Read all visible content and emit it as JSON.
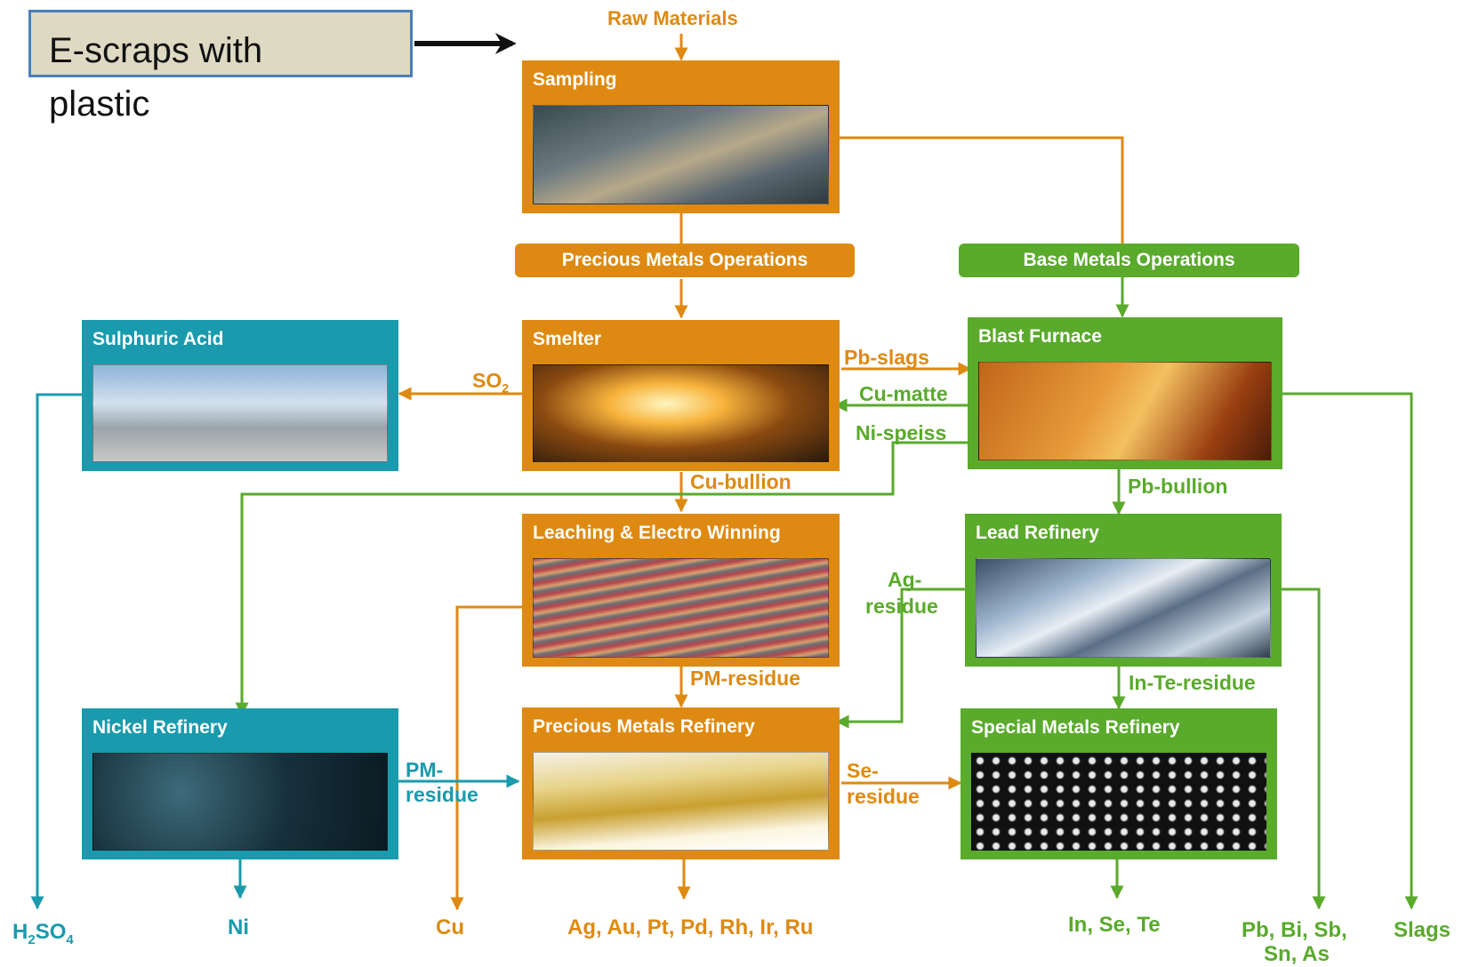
{
  "callout": {
    "text": "E-scraps with plastic"
  },
  "raw_materials": "Raw Materials",
  "operations": {
    "precious": "Precious  Metals Operations",
    "base": "Base  Metals Operations"
  },
  "boxes": {
    "sampling": "Sampling",
    "sulphuric_acid": "Sulphuric Acid",
    "smelter": "Smelter",
    "blast_furnace": "Blast Furnace",
    "leaching": "Leaching & Electro Winning",
    "lead_refinery": "Lead Refinery",
    "nickel_refinery": "Nickel Refinery",
    "precious_refinery": "Precious Metals Refinery",
    "special_refinery": "Special Metals Refinery"
  },
  "flows": {
    "so2": "SO",
    "so2_sub": "2",
    "pb_slags": "Pb-slags",
    "cu_matte": "Cu-matte",
    "ni_speiss": "Ni-speiss",
    "cu_bullion": "Cu-bullion",
    "pb_bullion": "Pb-bullion",
    "ag_residue_1": "Ag-",
    "ag_residue_2": "residue",
    "pm_residue": "PM-residue",
    "in_te_residue": "In-Te-residue",
    "pm_residue_ni_1": "PM-",
    "pm_residue_ni_2": "residue",
    "se_residue_1": "Se-",
    "se_residue_2": "residue"
  },
  "outputs": {
    "h2so4_h": "H",
    "h2so4_2": "2",
    "h2so4_so": "SO",
    "h2so4_4": "4",
    "ni": "Ni",
    "cu": "Cu",
    "precious": "Ag, Au, Pt, Pd, Rh, Ir, Ru",
    "special": "In, Se, Te",
    "lead_1": "Pb, Bi, Sb,",
    "lead_2": "Sn, As",
    "slags": "Slags"
  },
  "colors": {
    "precious": "#de8a12",
    "base": "#5aaa2c",
    "teal": "#1a9aad"
  }
}
